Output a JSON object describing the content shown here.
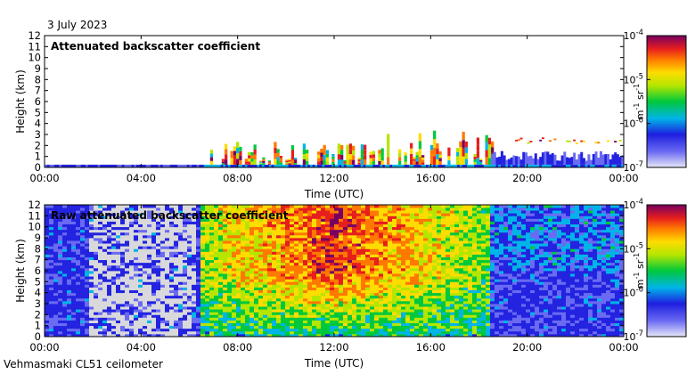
{
  "date": "3 July 2023",
  "instrument": "Vehmasmaki CL51 ceilometer",
  "chart_data": [
    {
      "type": "heatmap",
      "title": "Attenuated backscatter coefficient",
      "xlabel": "Time (UTC)",
      "ylabel": "Height (km)",
      "xlim": [
        0,
        24
      ],
      "ylim": [
        0,
        12
      ],
      "x_ticks": [
        "00:00",
        "04:00",
        "08:00",
        "12:00",
        "16:00",
        "20:00",
        "00:00"
      ],
      "y_ticks": [
        "0",
        "1",
        "2",
        "3",
        "4",
        "5",
        "6",
        "7",
        "8",
        "9",
        "10",
        "11",
        "12"
      ],
      "colorbar": {
        "label_base": "m",
        "label_exp1": "-1",
        "label_mid": "sr",
        "label_exp2": "-1",
        "scale": "log",
        "range": [
          1e-07,
          0.0001
        ],
        "ticks": [
          {
            "base": "10",
            "exp": "-7"
          },
          {
            "base": "10",
            "exp": "-6"
          },
          {
            "base": "10",
            "exp": "-5"
          },
          {
            "base": "10",
            "exp": "-4"
          }
        ]
      },
      "features": [
        {
          "desc": "surface aerosol layer",
          "x": [
            0,
            24
          ],
          "height_km": [
            0,
            0.3
          ]
        },
        {
          "desc": "boundary layer clouds",
          "x": [
            6.5,
            18.5
          ],
          "height_km": [
            0.3,
            3.5
          ]
        },
        {
          "desc": "evening residual layer",
          "x": [
            18.5,
            24
          ],
          "height_km": [
            0.5,
            2.6
          ]
        }
      ]
    },
    {
      "type": "heatmap",
      "title": "Raw attenuated backscatter coefficient",
      "xlabel": "Time (UTC)",
      "ylabel": "Height (km)",
      "xlim": [
        0,
        24
      ],
      "ylim": [
        0,
        12
      ],
      "x_ticks": [
        "00:00",
        "04:00",
        "08:00",
        "12:00",
        "16:00",
        "20:00",
        "00:00"
      ],
      "y_ticks": [
        "0",
        "1",
        "2",
        "3",
        "4",
        "5",
        "6",
        "7",
        "8",
        "9",
        "10",
        "11",
        "12"
      ],
      "colorbar": {
        "label_base": "m",
        "label_exp1": "-1",
        "label_mid": "sr",
        "label_exp2": "-1",
        "scale": "log",
        "range": [
          1e-07,
          0.0001
        ],
        "ticks": [
          {
            "base": "10",
            "exp": "-7"
          },
          {
            "base": "10",
            "exp": "-6"
          },
          {
            "base": "10",
            "exp": "-5"
          },
          {
            "base": "10",
            "exp": "-4"
          }
        ]
      },
      "features": [
        {
          "desc": "noisy night-time signal",
          "x": [
            0,
            6.5
          ],
          "height_km": [
            0,
            12
          ]
        },
        {
          "desc": "daytime solar background noise",
          "x": [
            6.5,
            18.5
          ],
          "height_km": [
            0,
            12
          ]
        },
        {
          "desc": "evening noise",
          "x": [
            18.5,
            24
          ],
          "height_km": [
            0,
            12
          ]
        }
      ]
    }
  ]
}
